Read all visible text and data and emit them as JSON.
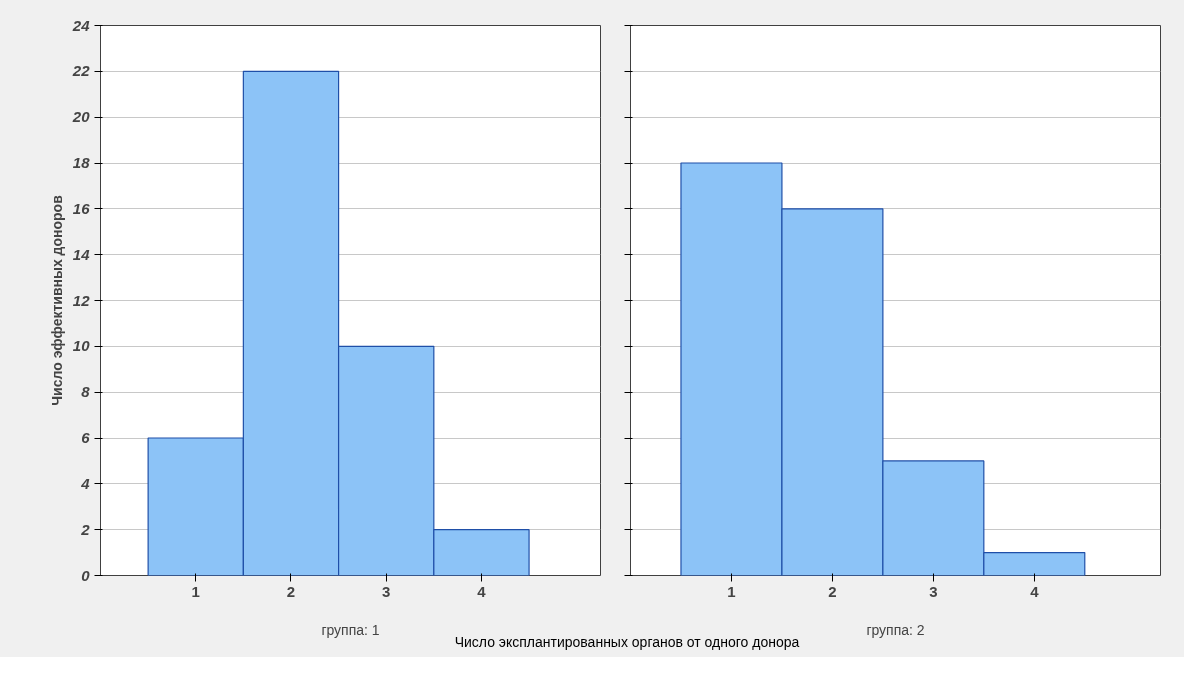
{
  "chart_data": [
    {
      "type": "bar",
      "xlabel": "группа: 1",
      "ylabel": "Число эффективных доноров",
      "categories": [
        "1",
        "2",
        "3",
        "4"
      ],
      "values": [
        6,
        22,
        10,
        2
      ],
      "color": "#8cc3f7",
      "ylim": [
        0,
        24
      ],
      "yticks": [
        0,
        2,
        4,
        6,
        8,
        10,
        12,
        14,
        16,
        18,
        20,
        22,
        24
      ],
      "grid": "y",
      "annotations": [
        "Число эксплантированных органов от одного донора"
      ]
    },
    {
      "type": "bar",
      "xlabel": "группа: 2",
      "categories": [
        "1",
        "2",
        "3",
        "4"
      ],
      "values": [
        18,
        16,
        5,
        1
      ],
      "color": "#8cc3f7",
      "ylim": [
        0,
        24
      ],
      "yticks": [
        0,
        2,
        4,
        6,
        8,
        10,
        12,
        14,
        16,
        18,
        20,
        22,
        24
      ],
      "grid": "y",
      "tick_labels": "x"
    }
  ]
}
